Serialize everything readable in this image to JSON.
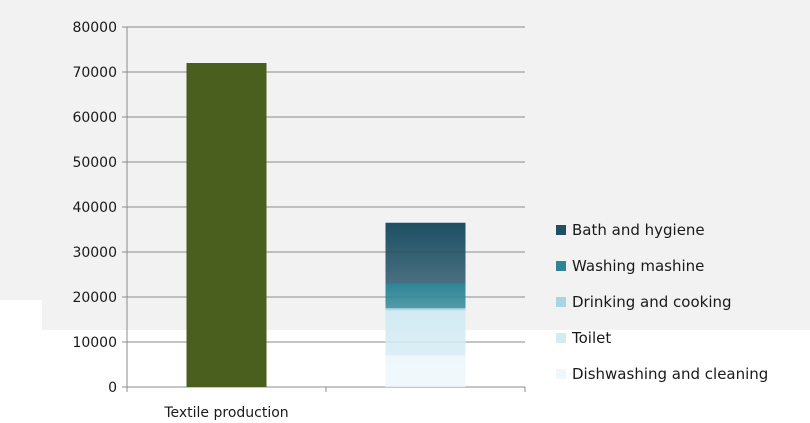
{
  "chart_data": {
    "type": "bar",
    "stacked": true,
    "categories": [
      "Textile production",
      ""
    ],
    "ylim": [
      0,
      80000
    ],
    "yticks": [
      0,
      10000,
      20000,
      30000,
      40000,
      50000,
      60000,
      70000,
      80000
    ],
    "grid": true,
    "legend_position": "right",
    "series": [
      {
        "name": "Textile production",
        "values": [
          72000,
          0
        ],
        "color": "#4a5e1e",
        "in_legend": false
      },
      {
        "name": "Dishwashing and cleaning",
        "values": [
          0,
          7000
        ],
        "color": "#eef7fb",
        "in_legend": true
      },
      {
        "name": "Toilet",
        "values": [
          0,
          10000
        ],
        "color": "#d3ebf3",
        "in_legend": true
      },
      {
        "name": "Drinking and cooking",
        "values": [
          0,
          500
        ],
        "color": "#a9d6e5",
        "in_legend": true
      },
      {
        "name": "Washing mashine",
        "values": [
          0,
          5500
        ],
        "color": "#2d8596",
        "in_legend": true
      },
      {
        "name": "Bath and hygiene",
        "values": [
          0,
          13500
        ],
        "color": "#1e4f63",
        "in_legend": true
      }
    ],
    "legend_order": [
      "Bath and hygiene",
      "Washing mashine",
      "Drinking and cooking",
      "Toilet",
      "Dishwashing and cleaning"
    ]
  }
}
